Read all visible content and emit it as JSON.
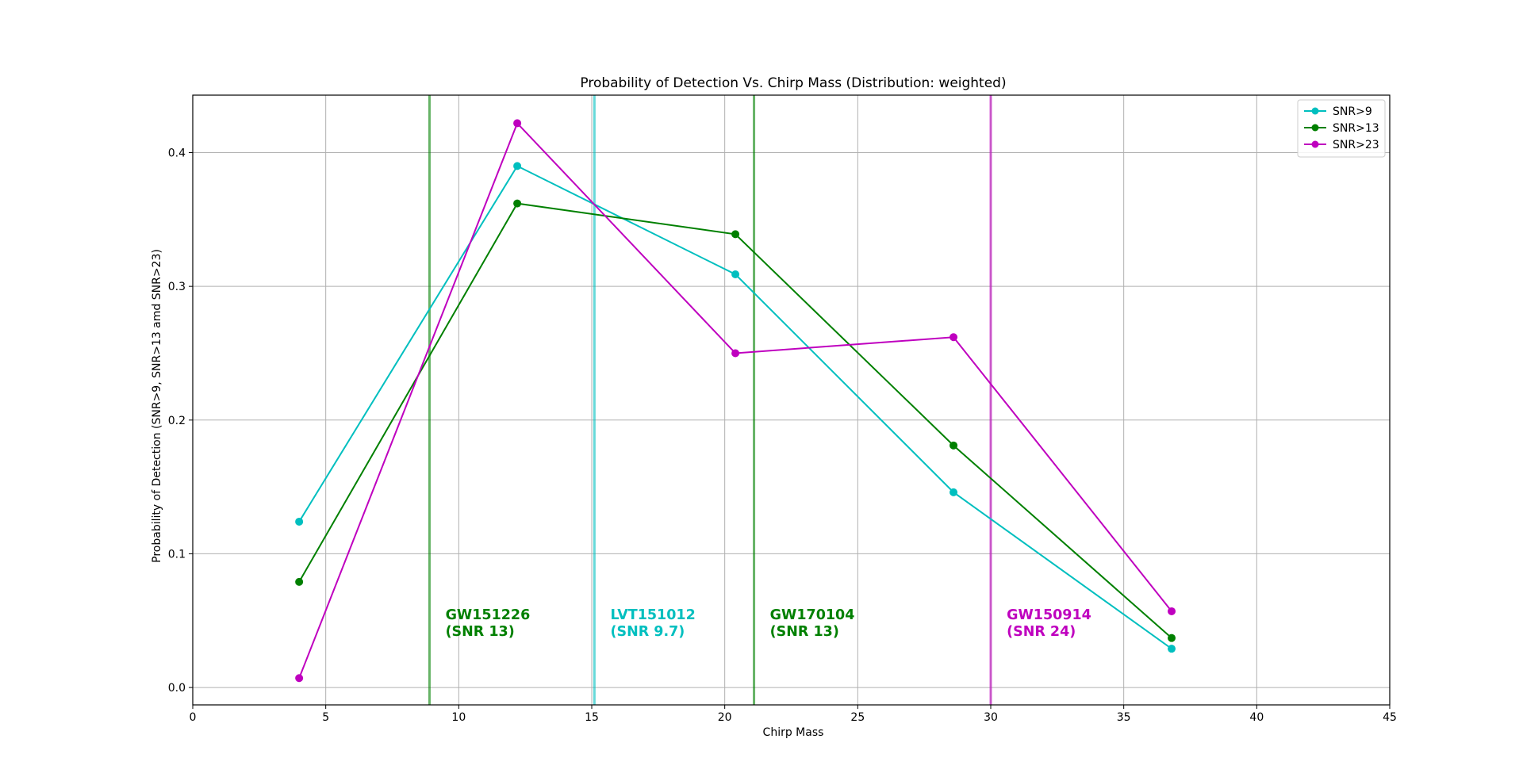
{
  "chart_data": {
    "type": "line",
    "title": "Probability of Detection Vs. Chirp Mass (Distribution: weighted)",
    "xlabel": "Chirp Mass",
    "ylabel": "Probability of Detection (SNR>9, SNR>13 amd SNR>23)",
    "xlim": [
      0,
      45
    ],
    "ylim": [
      -0.013,
      0.443
    ],
    "xticks": [
      0,
      5,
      10,
      15,
      20,
      25,
      30,
      35,
      40,
      45
    ],
    "xtick_labels": [
      "0",
      "5",
      "10",
      "15",
      "20",
      "25",
      "30",
      "35",
      "40",
      "45"
    ],
    "yticks": [
      0.0,
      0.1,
      0.2,
      0.3,
      0.4
    ],
    "ytick_labels": [
      "0.0",
      "0.1",
      "0.2",
      "0.3",
      "0.4"
    ],
    "grid": true,
    "legend_position": "top-right",
    "x": [
      4.0,
      12.2,
      20.4,
      28.6,
      36.8
    ],
    "series": [
      {
        "name": "SNR>9",
        "color": "#00bfbf",
        "values": [
          0.124,
          0.39,
          0.309,
          0.146,
          0.029
        ]
      },
      {
        "name": "SNR>13",
        "color": "#008000",
        "values": [
          0.079,
          0.362,
          0.339,
          0.181,
          0.037
        ]
      },
      {
        "name": "SNR>23",
        "color": "#bf00bf",
        "values": [
          0.007,
          0.422,
          0.25,
          0.262,
          0.057
        ]
      }
    ],
    "vlines": [
      {
        "x": 8.9,
        "color": "#008000"
      },
      {
        "x": 15.1,
        "color": "#00bfbf"
      },
      {
        "x": 21.1,
        "color": "#008000"
      },
      {
        "x": 30.0,
        "color": "#bf00bf"
      }
    ],
    "annotations": [
      {
        "line1": "GW151226",
        "line2": "(SNR 13)",
        "x": 9.5,
        "y": 0.045,
        "color": "#008000"
      },
      {
        "line1": "LVT151012",
        "line2": "(SNR 9.7)",
        "x": 15.7,
        "y": 0.045,
        "color": "#00bfbf"
      },
      {
        "line1": "GW170104",
        "line2": "(SNR 13)",
        "x": 21.7,
        "y": 0.045,
        "color": "#008000"
      },
      {
        "line1": "GW150914",
        "line2": "(SNR 24)",
        "x": 30.6,
        "y": 0.045,
        "color": "#bf00bf"
      }
    ]
  }
}
